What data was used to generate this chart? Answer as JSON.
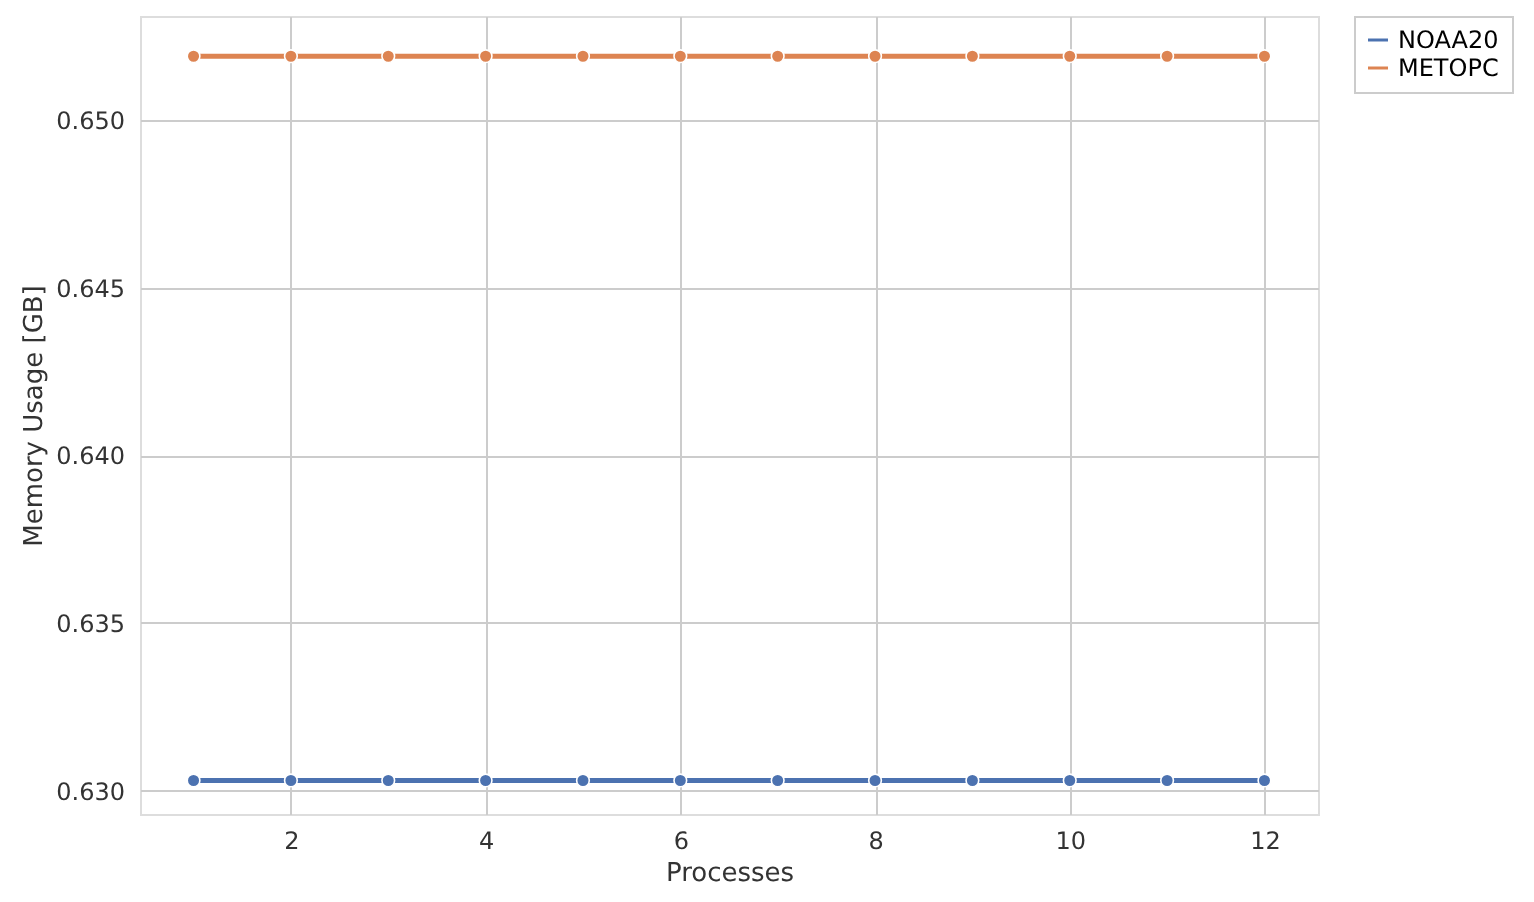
{
  "chart_data": {
    "type": "line",
    "xlabel": "Processes",
    "ylabel": "Memory Usage [GB]",
    "x": [
      1,
      2,
      3,
      4,
      5,
      6,
      7,
      8,
      9,
      10,
      11,
      12
    ],
    "series": [
      {
        "name": "NOAA20",
        "color": "#4c72b0",
        "values": [
          0.6303,
          0.6303,
          0.6303,
          0.6303,
          0.6303,
          0.6303,
          0.6303,
          0.6303,
          0.6303,
          0.6303,
          0.6303,
          0.6303
        ]
      },
      {
        "name": "METOPC",
        "color": "#dd8452",
        "values": [
          0.6519,
          0.6519,
          0.6519,
          0.6519,
          0.6519,
          0.6519,
          0.6519,
          0.6519,
          0.6519,
          0.6519,
          0.6519,
          0.6519
        ]
      }
    ],
    "xlim": [
      0.45,
      12.55
    ],
    "xticks": [
      2,
      4,
      6,
      8,
      10,
      12
    ],
    "ylim": [
      0.6293,
      0.6531
    ],
    "yticks": [
      {
        "value": 0.63,
        "label": "0.630"
      },
      0.635,
      {
        "value": 0.64,
        "label": "0.640"
      },
      0.645,
      {
        "value": 0.65,
        "label": "0.650"
      }
    ],
    "grid": true,
    "legend": "right",
    "marker": "circle",
    "line_style": "solid"
  }
}
